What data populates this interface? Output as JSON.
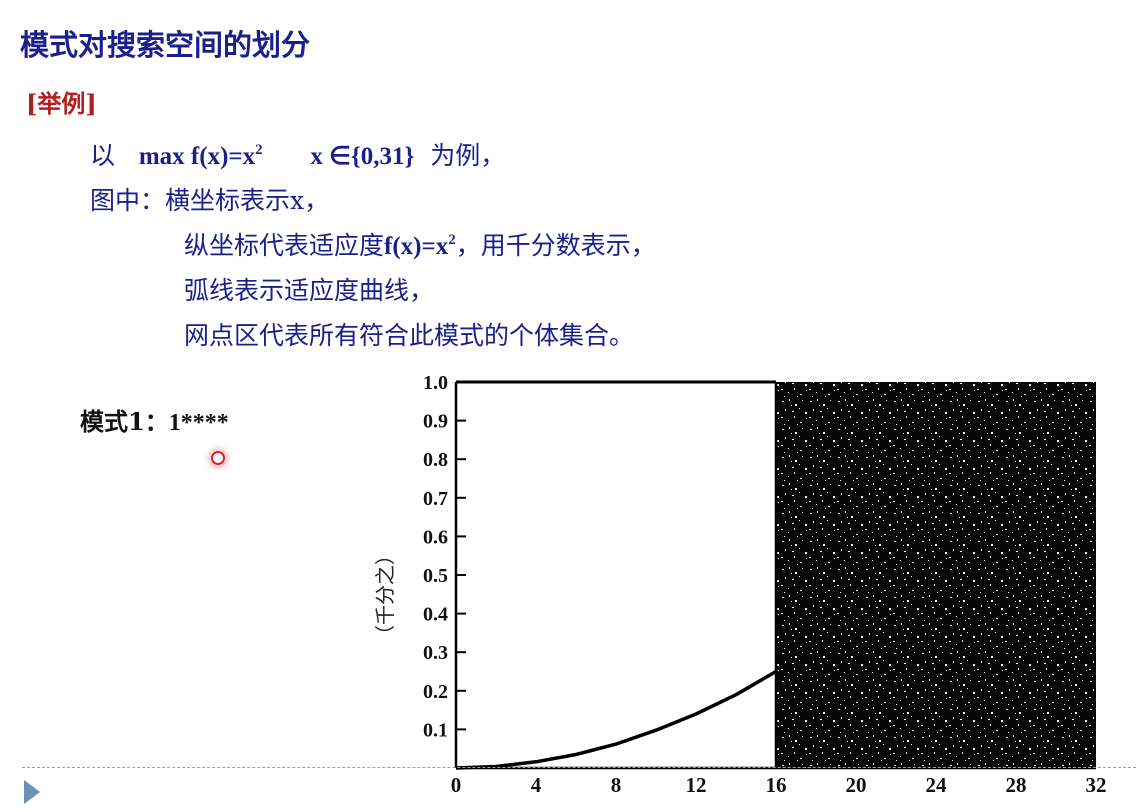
{
  "slide": {
    "title": "模式对搜索空间的划分",
    "tag": "[举例]",
    "line1": {
      "prefix": "以",
      "expr": "max  f(x)=x",
      "exp": "2",
      "domain": "x ∈{0,31}",
      "suffix": "为例，"
    },
    "line2": "图中：横坐标表示x，",
    "line3": {
      "prefix": "纵坐标代表适应度",
      "expr": "f(x)=x",
      "exp": "2",
      "suffix": "，用千分数表示，"
    },
    "line4": "弧线表示适应度曲线，",
    "line5": "网点区代表所有符合此模式的个体集合。",
    "pattern_label": "模式1：",
    "pattern_value": "1****"
  },
  "colors": {
    "text_blue": "#1a1f8c",
    "tag_red": "#b21e1e",
    "divider": "#7fa9cf",
    "pointer": "#e0202a"
  },
  "chart_data": {
    "type": "line",
    "x_ticks": [
      0,
      4,
      8,
      12,
      16,
      20,
      24,
      28,
      32
    ],
    "y_ticks": [
      "0.1",
      "0.2",
      "0.3",
      "0.4",
      "0.5",
      "0.6",
      "0.7",
      "0.8",
      "0.9",
      "1.0"
    ],
    "xlim": [
      0,
      32
    ],
    "ylim": [
      0,
      1.0
    ],
    "ylabel": "（千分之）",
    "curve": "f(x)=x^2 per-thousand",
    "x": [
      0,
      2,
      4,
      6,
      8,
      10,
      12,
      14,
      16
    ],
    "y": [
      0,
      0.004,
      0.016,
      0.035,
      0.062,
      0.098,
      0.14,
      0.19,
      0.25
    ],
    "shaded_region": {
      "x_from": 16,
      "x_to": 32,
      "pattern": "1****"
    }
  }
}
